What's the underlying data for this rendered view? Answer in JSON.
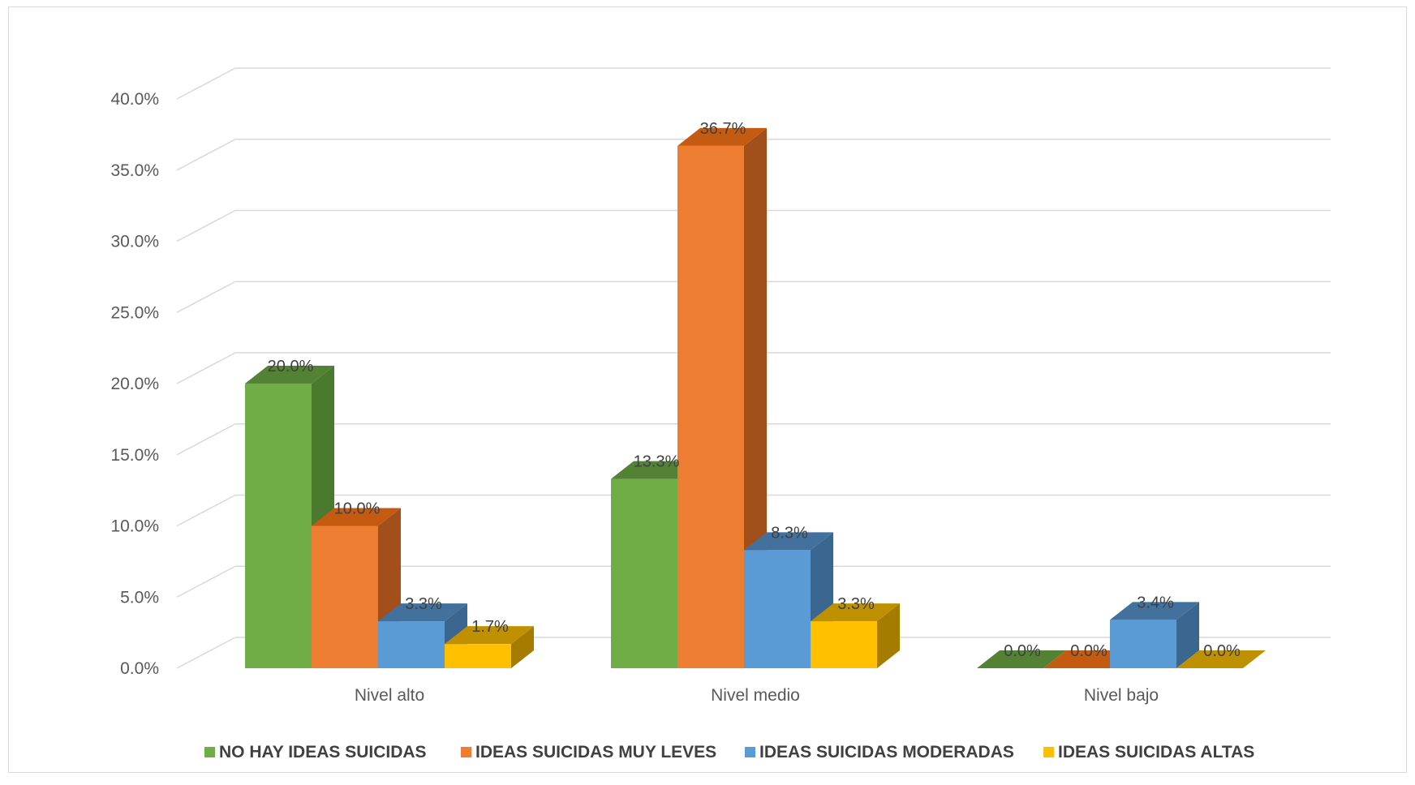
{
  "chart_data": {
    "type": "bar",
    "subtype": "3d-clustered-column",
    "categories": [
      "Nivel alto",
      "Nivel medio",
      "Nivel bajo"
    ],
    "series": [
      {
        "name": "NO HAY IDEAS SUICIDAS",
        "values": [
          20.0,
          13.3,
          0.0
        ],
        "labels": [
          "20.0%",
          "13.3%",
          "0.0%"
        ],
        "color": "#70ad47",
        "side": "#4a7a2e",
        "top": "#548235"
      },
      {
        "name": "IDEAS SUICIDAS MUY LEVES",
        "values": [
          10.0,
          36.7,
          0.0
        ],
        "labels": [
          "10.0%",
          "36.7%",
          "0.0%"
        ],
        "color": "#ed7d31",
        "side": "#a34f1c",
        "top": "#c55a11"
      },
      {
        "name": "IDEAS SUICIDAS MODERADAS",
        "values": [
          3.3,
          8.3,
          3.4
        ],
        "labels": [
          "3.3%",
          "8.3%",
          "3.4%"
        ],
        "color": "#5b9bd5",
        "side": "#3a6690",
        "top": "#41719c"
      },
      {
        "name": "IDEAS SUICIDAS ALTAS",
        "values": [
          1.7,
          3.3,
          0.0
        ],
        "labels": [
          "1.7%",
          "3.3%",
          "0.0%"
        ],
        "color": "#ffc000",
        "side": "#a67c00",
        "top": "#bf9000"
      }
    ],
    "y_ticks": [
      "0.0%",
      "5.0%",
      "10.0%",
      "15.0%",
      "20.0%",
      "25.0%",
      "30.0%",
      "35.0%",
      "40.0%"
    ],
    "ylim": [
      0,
      40
    ],
    "y_unit": "%",
    "grid": true,
    "legend_position": "bottom",
    "title": "",
    "xlabel": "",
    "ylabel": "",
    "gridline_color": "#d9d9d9"
  }
}
